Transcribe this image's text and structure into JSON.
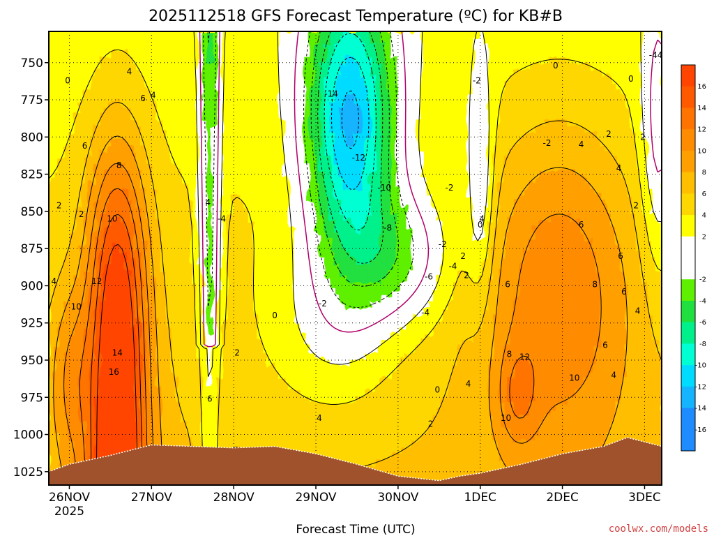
{
  "title": "2025112518 GFS Forecast Temperature (ºC) for KB#B",
  "credit": "coolwx.com/models",
  "colors": {
    "bands": [
      "#1e90ff",
      "#00b4ff",
      "#00d8ff",
      "#00ffc8",
      "#00e696",
      "#22dd22",
      "#5bf000",
      "#ffffff",
      "#ffff00",
      "#ffd200",
      "#ffaa00",
      "#ff8c00",
      "#ff6a00",
      "#ff4500"
    ],
    "ground": "#a0522d",
    "zero_isotherm": "#b0006a"
  },
  "chart_data": {
    "type": "heatmap",
    "title": "2025112518 GFS Forecast Temperature (ºC) for KB#B",
    "xlabel": "Forecast Time (UTC)",
    "ylabel": "",
    "x_unit": "hours from 26NOV 00Z",
    "x_ticks": [
      {
        "label": "26NOV",
        "sub": "2025",
        "x": 0
      },
      {
        "label": "27NOV",
        "x": 24
      },
      {
        "label": "28NOV",
        "x": 48
      },
      {
        "label": "29NOV",
        "x": 72
      },
      {
        "label": "30NOV",
        "x": 96
      },
      {
        "label": "1DEC",
        "x": 120
      },
      {
        "label": "2DEC",
        "x": 144
      },
      {
        "label": "3DEC",
        "x": 168
      }
    ],
    "xlim": [
      -6,
      173
    ],
    "y_ticks": [
      750,
      775,
      800,
      825,
      850,
      875,
      900,
      925,
      950,
      975,
      1000,
      1025
    ],
    "ylim": [
      729,
      1034
    ],
    "y_reversed": true,
    "grid": true,
    "colorbar": {
      "ticks": [
        "16",
        "14",
        "12",
        "10",
        "8",
        "6",
        "4",
        "2",
        "-2",
        "-4",
        "-6",
        "-8",
        "-10",
        "-12",
        "-14",
        "-16"
      ],
      "range": [
        -18,
        18
      ],
      "step": 2,
      "white_band": [
        -2,
        2
      ]
    },
    "surface_pressure": [
      [
        -6,
        1025
      ],
      [
        0,
        1020
      ],
      [
        12,
        1014
      ],
      [
        24,
        1007
      ],
      [
        36,
        1008
      ],
      [
        48,
        1009
      ],
      [
        60,
        1008
      ],
      [
        72,
        1013
      ],
      [
        84,
        1020
      ],
      [
        96,
        1028
      ],
      [
        108,
        1031
      ],
      [
        114,
        1028
      ],
      [
        120,
        1026
      ],
      [
        132,
        1020
      ],
      [
        144,
        1013
      ],
      [
        156,
        1008
      ],
      [
        163,
        1002
      ],
      [
        168,
        1005
      ],
      [
        173,
        1008
      ]
    ],
    "isotherm_labels": [
      {
        "t": "0",
        "x": -0.5,
        "y": 762
      },
      {
        "t": "4",
        "x": 17.5,
        "y": 756
      },
      {
        "t": "6",
        "x": 21.5,
        "y": 774
      },
      {
        "t": "4",
        "x": 24.5,
        "y": 772
      },
      {
        "t": "6",
        "x": 4.5,
        "y": 806
      },
      {
        "t": "8",
        "x": 14.5,
        "y": 819
      },
      {
        "t": "2",
        "x": -3,
        "y": 846
      },
      {
        "t": "2",
        "x": 3.5,
        "y": 852
      },
      {
        "t": "4",
        "x": 40.5,
        "y": 844
      },
      {
        "t": "10",
        "x": 12.5,
        "y": 855
      },
      {
        "t": "4",
        "x": -4.5,
        "y": 897
      },
      {
        "t": "12",
        "x": 8,
        "y": 897
      },
      {
        "t": "10",
        "x": 2,
        "y": 914
      },
      {
        "t": "14",
        "x": 14,
        "y": 945
      },
      {
        "t": "16",
        "x": 13,
        "y": 958
      },
      {
        "t": "6",
        "x": 41,
        "y": 976
      },
      {
        "t": "-4",
        "x": 44.5,
        "y": 855
      },
      {
        "t": "-14",
        "x": 76.5,
        "y": 771
      },
      {
        "t": "-12",
        "x": 84.5,
        "y": 814
      },
      {
        "t": "-10",
        "x": 92,
        "y": 834
      },
      {
        "t": "-8",
        "x": 93,
        "y": 861
      },
      {
        "t": "-6",
        "x": 105,
        "y": 894
      },
      {
        "t": "-4",
        "x": 112,
        "y": 887
      },
      {
        "t": "-2",
        "x": 74,
        "y": 912
      },
      {
        "t": "-4",
        "x": 104,
        "y": 918
      },
      {
        "t": "0",
        "x": 60,
        "y": 920
      },
      {
        "t": "2",
        "x": 49,
        "y": 945
      },
      {
        "t": "4",
        "x": 73,
        "y": 989
      },
      {
        "t": "2",
        "x": 105.5,
        "y": 993
      },
      {
        "t": "0",
        "x": 107.5,
        "y": 970
      },
      {
        "t": "4",
        "x": 116.5,
        "y": 966
      },
      {
        "t": "-2",
        "x": 139.5,
        "y": 804
      },
      {
        "t": "2",
        "x": 157.5,
        "y": 798
      },
      {
        "t": "4",
        "x": 149.5,
        "y": 805
      },
      {
        "t": "2",
        "x": 167.5,
        "y": 800
      },
      {
        "t": "-2",
        "x": 119,
        "y": 762
      },
      {
        "t": "0",
        "x": 142,
        "y": 752
      },
      {
        "t": "0",
        "x": 164,
        "y": 761
      },
      {
        "t": "4",
        "x": 172.5,
        "y": 745
      },
      {
        "t": "-2",
        "x": 111,
        "y": 834
      },
      {
        "t": "0",
        "x": 120,
        "y": 859
      },
      {
        "t": "2",
        "x": 115,
        "y": 880
      },
      {
        "t": "-2",
        "x": 109,
        "y": 872
      },
      {
        "t": "2",
        "x": 116,
        "y": 893
      },
      {
        "t": "4",
        "x": 120.5,
        "y": 855
      },
      {
        "t": "4",
        "x": 160.5,
        "y": 821
      },
      {
        "t": "2",
        "x": 165.5,
        "y": 846
      },
      {
        "t": "6",
        "x": 149.5,
        "y": 859
      },
      {
        "t": "6",
        "x": 161,
        "y": 880
      },
      {
        "t": "8",
        "x": 153.5,
        "y": 899
      },
      {
        "t": "6",
        "x": 128,
        "y": 899
      },
      {
        "t": "6",
        "x": 162,
        "y": 904
      },
      {
        "t": "4",
        "x": 166,
        "y": 917
      },
      {
        "t": "6",
        "x": 156.5,
        "y": 940
      },
      {
        "t": "8",
        "x": 128.5,
        "y": 946
      },
      {
        "t": "12",
        "x": 133,
        "y": 948
      },
      {
        "t": "10",
        "x": 147.5,
        "y": 962
      },
      {
        "t": "4",
        "x": 159,
        "y": 960
      },
      {
        "t": "10",
        "x": 127.5,
        "y": 989
      },
      {
        "t": "-4",
        "x": 170.5,
        "y": 745
      }
    ]
  }
}
